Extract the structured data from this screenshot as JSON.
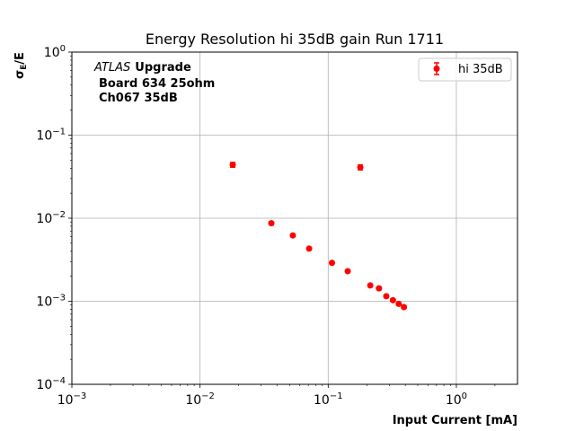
{
  "chart_data": {
    "type": "scatter",
    "title": "Energy Resolution hi 35dB gain Run 1711",
    "xlabel": "Input Current [mA]",
    "ylabel": "σE/E",
    "xscale": "log",
    "yscale": "log",
    "xlim": [
      0.001,
      3
    ],
    "ylim": [
      0.0001,
      1
    ],
    "grid": true,
    "legend_position": "top-right",
    "x_ticks": [
      {
        "value": 0.001,
        "base": "10",
        "exp": "−3"
      },
      {
        "value": 0.01,
        "base": "10",
        "exp": "−2"
      },
      {
        "value": 0.1,
        "base": "10",
        "exp": "−1"
      },
      {
        "value": 1,
        "base": "10",
        "exp": "0"
      }
    ],
    "y_ticks": [
      {
        "value": 0.0001,
        "base": "10",
        "exp": "−4"
      },
      {
        "value": 0.001,
        "base": "10",
        "exp": "−3"
      },
      {
        "value": 0.01,
        "base": "10",
        "exp": "−2"
      },
      {
        "value": 0.1,
        "base": "10",
        "exp": "−1"
      },
      {
        "value": 1,
        "base": "10",
        "exp": "0"
      }
    ],
    "annotation": {
      "experiment": "ATLAS",
      "tag": "Upgrade",
      "line2": "Board 634 25ohm",
      "line3": "Ch067 35dB"
    },
    "series": [
      {
        "name": "hi 35dB",
        "color": "#ff0000",
        "marker": "circle",
        "x": [
          0.018,
          0.036,
          0.053,
          0.071,
          0.107,
          0.142,
          0.178,
          0.213,
          0.249,
          0.284,
          0.32,
          0.355,
          0.39
        ],
        "y": [
          0.044,
          0.0087,
          0.0062,
          0.0043,
          0.0029,
          0.0023,
          0.041,
          0.00155,
          0.00143,
          0.00115,
          0.00103,
          0.00093,
          0.00085
        ],
        "yerr": [
          0.003,
          0.0003,
          0.0002,
          0.00015,
          0.0001,
          8e-05,
          0.003,
          6e-05,
          5e-05,
          4e-05,
          4e-05,
          3e-05,
          3e-05
        ]
      }
    ]
  }
}
